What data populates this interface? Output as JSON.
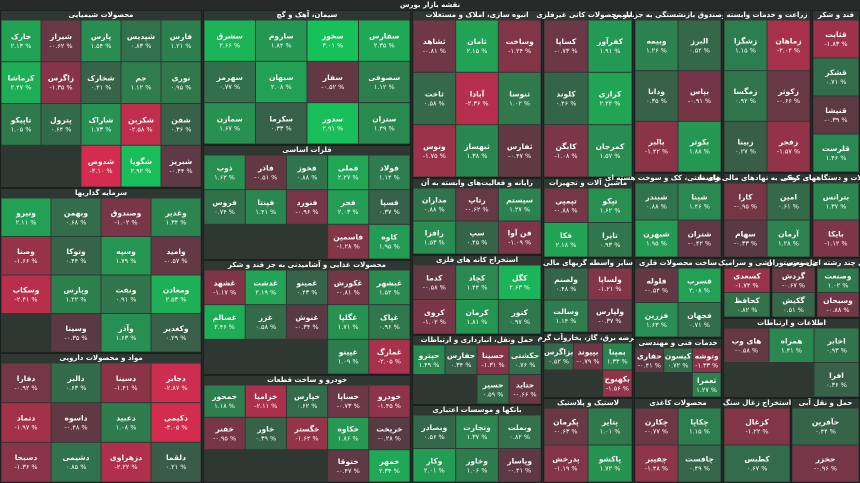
{
  "chart_data": {
    "type": "treemap",
    "title": "نقشه بازار بورس",
    "groups": [
      {
        "name": "محصولات شیمیایی",
        "categories": [
          "فارس",
          "شپدیس",
          "پارس",
          "شیراز",
          "خارک",
          "نوری",
          "جم",
          "شخارک",
          "زاگرس",
          "کرماشا",
          "شفن",
          "شکربن",
          "شاراک",
          "پترول",
          "تاپیکو",
          "شبریز",
          "شگویا",
          "شدوص"
        ],
        "values": [
          1.21,
          0.83,
          1.54,
          -0.62,
          2.13,
          0.95,
          1.12,
          0.41,
          -1.35,
          2.47,
          0.36,
          -2.58,
          1.73,
          0.64,
          1.05,
          -0.44,
          2.92,
          -3.1
        ],
        "value_labels": [
          "۱.۲۱ %",
          "۰.۸۳ %",
          "۱.۵۴ %",
          "-۰.۶۲ %",
          "۲.۱۳ %",
          "۰.۹۵ %",
          "۱.۱۲ %",
          "۰.۴۱ %",
          "-۱.۳۵ %",
          "۲.۴۷ %",
          "۰.۳۶ %",
          "-۲.۵۸ %",
          "۱.۷۳ %",
          "۰.۶۴ %",
          "۱.۰۵ %",
          "-۰.۴۴ %",
          "۲.۹۲ %",
          "-۳.۱۰ %"
        ]
      },
      {
        "name": "سیمان، آهک و گچ",
        "categories": [
          "سفارس",
          "سخوز",
          "ساروم",
          "سشرق",
          "سصوفی",
          "سفار",
          "سبهان",
          "سهرمز",
          "ستران",
          "سدور",
          "سکرما",
          "سمازن"
        ],
        "values": [
          2.35,
          3.01,
          1.84,
          2.66,
          1.12,
          -0.52,
          2.08,
          0.77,
          1.49,
          2.91,
          0.33,
          1.67
        ],
        "value_labels": [
          "۲.۳۵ %",
          "۳.۰۱ %",
          "۱.۸۴ %",
          "۲.۶۶ %",
          "۱.۱۲ %",
          "-۰.۵۲ %",
          "۲.۰۸ %",
          "۰.۷۷ %",
          "۱.۴۹ %",
          "۲.۹۱ %",
          "۰.۳۳ %",
          "۱.۶۷ %"
        ]
      },
      {
        "name": "انبوه سازی، املاک و مستغلات",
        "categories": [
          "وساخت",
          "ثامان",
          "ثشاهد",
          "ثنوسا",
          "آبادا",
          "ثاخت",
          "ثفارس",
          "ثبهساز",
          "وتوس"
        ],
        "values": [
          -1.24,
          2.15,
          -0.81,
          1.02,
          -2.36,
          0.58,
          -0.47,
          1.38,
          -1.75
        ],
        "value_labels": [
          "-۱.۲۴ %",
          "۲.۱۵ %",
          "-۰.۸۱ %",
          "۱.۰۲ %",
          "-۲.۳۶ %",
          "۰.۵۸ %",
          "-۰.۴۷ %",
          "۱.۳۸ %",
          "-۱.۷۵ %"
        ]
      },
      {
        "name": "سایر محصولات کانی غیرفلزی",
        "categories": [
          "کفرآور",
          "کساپا",
          "کرازی",
          "کلوند",
          "کمرجان",
          "کابگن"
        ],
        "values": [
          1.91,
          -0.73,
          2.24,
          0.46,
          1.57,
          -1.08
        ],
        "value_labels": [
          "۱.۹۱ %",
          "-۰.۷۳ %",
          "۲.۲۴ %",
          "۰.۴۶ %",
          "۱.۵۷ %",
          "-۱.۰۸ %"
        ]
      },
      {
        "name": "بیمه وصندوق بازنشستگی به جز تامین",
        "categories": [
          "البرز",
          "وبیمه",
          "بپاس",
          "ودانا",
          "بکوثر",
          "بالبر"
        ],
        "values": [
          0.52,
          1.26,
          -0.91,
          0.35,
          1.88,
          -1.42
        ],
        "value_labels": [
          "۰.۵۲ %",
          "۱.۲۶ %",
          "-۰.۹۱ %",
          "۰.۳۵ %",
          "۱.۸۸ %",
          "-۱.۴۲ %"
        ]
      },
      {
        "name": "زراعت و خدمات وابسته",
        "categories": [
          "زماهان",
          "زشگزا",
          "زکوثر",
          "زمگسا",
          "زفجر",
          "زبینا"
        ],
        "values": [
          -2.04,
          1.15,
          -0.66,
          0.92,
          -1.57,
          0.27
        ],
        "value_labels": [
          "-۲.۰۴ %",
          "۱.۱۵ %",
          "-۰.۶۶ %",
          "۰.۹۲ %",
          "-۱.۵۷ %",
          "۰.۲۷ %"
        ]
      },
      {
        "name": "قند و شکر",
        "categories": [
          "قثابت",
          "قشکر",
          "قنیشا",
          "قلرست"
        ],
        "values": [
          -1.83,
          0.71,
          -0.39,
          1.46
        ],
        "value_labels": [
          "-۱.۸۳ %",
          "۰.۷۱ %",
          "-۰.۳۹ %",
          "۱.۴۶ %"
        ]
      },
      {
        "name": "سرمایه گذاریها",
        "categories": [
          "وغدیر",
          "وصندوق",
          "وبهمن",
          "ونیرو",
          "وامید",
          "وسپه",
          "وتوکا",
          "وصنا",
          "ومعادن",
          "ونفت",
          "وپارس",
          "وسکاب",
          "وکغدیر",
          "وآذر",
          "وسینا"
        ],
        "values": [
          1.34,
          -1.02,
          0.68,
          2.11,
          -0.57,
          1.79,
          0.44,
          -1.66,
          2.53,
          0.91,
          1.22,
          -2.41,
          0.29,
          1.63,
          -0.35
        ],
        "value_labels": [
          "۱.۳۴ %",
          "-۱.۰۲ %",
          "۰.۶۸ %",
          "۲.۱۱ %",
          "-۰.۵۷ %",
          "۱.۷۹ %",
          "۰.۴۴ %",
          "-۱.۶۶ %",
          "۲.۵۳ %",
          "۰.۹۱ %",
          "۱.۲۲ %",
          "-۲.۴۱ %",
          "۰.۲۹ %",
          "۱.۶۳ %",
          "-۰.۳۵ %"
        ]
      },
      {
        "name": "مواد و محصولات دارویی",
        "categories": [
          "دجابر",
          "دسینا",
          "دالبر",
          "دفارا",
          "دکیمی",
          "دعبید",
          "داسوه",
          "دتماد",
          "دلقما",
          "دزهراوی",
          "دشیمی",
          "دسبحا"
        ],
        "values": [
          -2.87,
          -1.41,
          0.63,
          -0.92,
          -3.05,
          1.08,
          -0.48,
          -1.97,
          0.21,
          -2.22,
          0.85,
          -1.36
        ],
        "value_labels": [
          "-۲.۸۷ %",
          "-۱.۴۱ %",
          "۰.۶۳ %",
          "-۰.۹۲ %",
          "-۳.۰۵ %",
          "۱.۰۸ %",
          "-۰.۴۸ %",
          "-۱.۹۷ %",
          "۰.۲۱ %",
          "-۲.۲۲ %",
          "۰.۸۵ %",
          "-۱.۳۶ %"
        ]
      },
      {
        "name": "فلزات اساسی",
        "categories": [
          "فولاد",
          "فملی",
          "فخوز",
          "فاذر",
          "ذوب",
          "فسپا",
          "فجر",
          "فنورد",
          "فپنتا",
          "فروس",
          "کاوه",
          "فاسمین"
        ],
        "values": [
          1.14,
          2.27,
          0.88,
          -0.51,
          1.62,
          0.37,
          2.03,
          -0.96,
          1.41,
          0.74,
          1.95,
          -1.28
        ],
        "value_labels": [
          "۱.۱۴ %",
          "۲.۲۷ %",
          "۰.۸۸ %",
          "-۰.۵۱ %",
          "۱.۶۲ %",
          "۰.۳۷ %",
          "۲.۰۳ %",
          "-۰.۹۶ %",
          "۱.۴۱ %",
          "۰.۷۴ %",
          "۱.۹۵ %",
          "-۱.۲۸ %"
        ]
      },
      {
        "name": "محصولات غذایی و آشامیدنی به جز قند و شکر",
        "categories": [
          "غبشهر",
          "غکورش",
          "غمینو",
          "غدشت",
          "غشهد",
          "غپاک",
          "غگلپا",
          "غنوش",
          "غزر",
          "غسالم",
          "غمارگ",
          "غپینو"
        ],
        "values": [
          1.52,
          -0.81,
          0.43,
          2.19,
          -1.17,
          0.96,
          1.71,
          -0.34,
          0.58,
          2.46,
          -2.05,
          1.09
        ],
        "value_labels": [
          "۱.۵۲ %",
          "-۰.۸۱ %",
          "۰.۴۳ %",
          "۲.۱۹ %",
          "-۱.۱۷ %",
          "۰.۹۶ %",
          "۱.۷۱ %",
          "-۰.۳۴ %",
          "۰.۵۸ %",
          "۲.۴۶ %",
          "-۲.۰۵ %",
          "۱.۰۹ %"
        ]
      },
      {
        "name": "خودرو و ساخت قطعات",
        "categories": [
          "خودرو",
          "خساپا",
          "خپارس",
          "خزامیا",
          "خمحور",
          "خریخت",
          "خکاوه",
          "خگستر",
          "خاور",
          "خفنر",
          "خمهر",
          "ختوقا"
        ],
        "values": [
          -1.45,
          -0.73,
          0.62,
          -2.11,
          1.18,
          -0.28,
          1.86,
          -1.64,
          0.39,
          -0.95,
          2.34,
          -0.47
        ],
        "value_labels": [
          "-۱.۴۵ %",
          "-۰.۷۳ %",
          "۰.۶۲ %",
          "-۲.۱۱ %",
          "۱.۱۸ %",
          "-۰.۲۸ %",
          "۱.۸۶ %",
          "-۱.۶۴ %",
          "۰.۳۹ %",
          "-۰.۹۵ %",
          "۲.۳۴ %",
          "-۰.۴۷ %"
        ]
      },
      {
        "name": "رایانه و فعالیت‌های وابسته به آن",
        "categories": [
          "سیستم",
          "رتاپ",
          "مداران",
          "فن آوا",
          "سپ",
          "رافزا"
        ],
        "values": [
          1.27,
          -0.62,
          0.88,
          -1.09,
          0.45,
          1.53
        ],
        "value_labels": [
          "۱.۲۷ %",
          "-۰.۶۲ %",
          "۰.۸۸ %",
          "-۱.۰۹ %",
          "۰.۴۵ %",
          "۱.۵۳ %"
        ]
      },
      {
        "name": "استخراج کانه های فلزی",
        "categories": [
          "کگل",
          "کچاد",
          "کدما",
          "کنور",
          "کرمان",
          "کروی"
        ],
        "values": [
          2.63,
          1.44,
          -0.58,
          0.97,
          1.81,
          -1.02
        ],
        "value_labels": [
          "۲.۶۳ %",
          "۱.۴۴ %",
          "-۰.۵۸ %",
          "۰.۹۷ %",
          "۱.۸۱ %",
          "-۱.۰۲ %"
        ]
      },
      {
        "name": "حمل ونقل، انبارداری و ارتباطات",
        "categories": [
          "حکشتی",
          "حسینا",
          "حفارس",
          "حپترو",
          "حتاید",
          "حسیر"
        ],
        "values": [
          0.76,
          -1.31,
          0.34,
          1.49,
          -0.66,
          0.59
        ],
        "value_labels": [
          "۰.۷۶ %",
          "-۱.۳۱ %",
          "۰.۳۴ %",
          "۱.۴۹ %",
          "-۰.۶۶ %",
          "۰.۵۹ %"
        ]
      },
      {
        "name": "بانکها و موسسات اعتباری",
        "categories": [
          "وبملت",
          "وتجارت",
          "وبصادر",
          "وپاسار",
          "وخاور",
          "وکار"
        ],
        "values": [
          0.82,
          1.37,
          0.56,
          -0.41,
          1.06,
          2.01
        ],
        "value_labels": [
          "۰.۸۲ %",
          "۱.۳۷ %",
          "۰.۵۶ %",
          "-۰.۴۱ %",
          "۱.۰۶ %",
          "۲.۰۱ %"
        ]
      },
      {
        "name": "ماشین آلات و تجهیزات",
        "categories": [
          "تپکو",
          "تپمپی",
          "تایرا",
          "فکا"
        ],
        "values": [
          1.62,
          -0.88,
          0.93,
          2.18
        ],
        "value_labels": [
          "۱.۶۲ %",
          "-۰.۸۸ %",
          "۰.۹۳ %",
          "۲.۱۸ %"
        ]
      },
      {
        "name": "سایر واسطه گریهای مالی",
        "categories": [
          "ولساپا",
          "ولصنم",
          "ولپارس",
          "وسالت"
        ],
        "values": [
          -1.21,
          0.48,
          -0.37,
          1.14
        ],
        "value_labels": [
          "-۱.۲۱ %",
          "۰.۴۸ %",
          "-۰.۳۷ %",
          "۱.۱۴ %"
        ]
      },
      {
        "name": "عرضه برق، گاز، بخاروآب گرم",
        "categories": [
          "بمپنا",
          "بپیوند",
          "بزاگرس",
          "بکهنوج"
        ],
        "values": [
          1.33,
          -0.79,
          0.52,
          -1.56
        ],
        "value_labels": [
          "۱.۳۳ %",
          "-۰.۷۹ %",
          "۰.۵۲ %",
          "-۱.۵۶ %"
        ]
      },
      {
        "name": "لاستیک و پلاستیک",
        "categories": [
          "پتایر",
          "پکرمان",
          "پاکشو",
          "پدرخش"
        ],
        "values": [
          1.01,
          -0.63,
          1.72,
          -1.19
        ],
        "value_labels": [
          "۱.۰۱ %",
          "-۰.۶۳ %",
          "۱.۷۲ %",
          "-۱.۱۹ %"
        ]
      },
      {
        "name": "فرآورده های نفتی، کک و سوخت هسته ای",
        "categories": [
          "شپنا",
          "شبندر",
          "شتران",
          "شبهرن"
        ],
        "values": [
          1.46,
          0.88,
          -0.42,
          1.95
        ],
        "value_labels": [
          "۱.۴۶ %",
          "۰.۸۸ %",
          "-۰.۴۲ %",
          "۱.۹۵ %"
        ]
      },
      {
        "name": "فعالیتهای کمکی به نهادهای مالی واسط",
        "categories": [
          "امین",
          "کارا",
          "آرمان",
          "سهام"
        ],
        "values": [
          0.61,
          -0.95,
          1.28,
          -0.33
        ],
        "value_labels": [
          "۰.۶۱ %",
          "-۰.۹۵ %",
          "۱.۲۸ %",
          "-۰.۳۳ %"
        ]
      },
      {
        "name": "ماشین آلات و دستگاههای برقی",
        "categories": [
          "بترانس",
          "بایکا"
        ],
        "values": [
          1.37,
          -1.12
        ],
        "value_labels": [
          "۱.۳۷ %",
          "-۱.۱۲ %"
        ]
      },
      {
        "name": "ساخت محصولات فلزی",
        "categories": [
          "فسرب",
          "فلوله",
          "فجهان",
          "فزرین"
        ],
        "values": [
          2.08,
          -0.54,
          0.71,
          1.63
        ],
        "value_labels": [
          "۲.۰۸ %",
          "-۰.۵۴ %",
          "۰.۷۱ %",
          "۱.۶۳ %"
        ]
      },
      {
        "name": "کاشی و سرامیک",
        "categories": [
          "کسعدی",
          "کحافظ"
        ],
        "values": [
          -1.74,
          0.82
        ],
        "value_labels": [
          "-۱.۷۴ %",
          "۰.۸۲ %"
        ]
      },
      {
        "name": "هتل و رستوران",
        "categories": [
          "گردش",
          "گکیش"
        ],
        "values": [
          -0.67,
          0.51
        ],
        "value_labels": [
          "-۰.۶۷ %",
          "۰.۵۱ %"
        ]
      },
      {
        "name": "شرکتهای چند رشته ای صنعتی",
        "categories": [
          "وصنعت",
          "وسبحان"
        ],
        "values": [
          1.02,
          -0.88
        ],
        "value_labels": [
          "۱.۰۲ %",
          "-۰.۸۸ %"
        ]
      },
      {
        "name": "خدمات فنی و مهندسی",
        "categories": [
          "وتوشه",
          "کیسون",
          "حفاری",
          "ثعمرا"
        ],
        "values": [
          -1.33,
          0.72,
          -0.41,
          1.27
        ],
        "value_labels": [
          "-۱.۳۳ %",
          "۰.۷۲ %",
          "-۰.۴۱ %",
          "۱.۲۷ %"
        ]
      },
      {
        "name": "محصولات کاغذی",
        "categories": [
          "چکاپا",
          "چکارن",
          "چافست",
          "چفیبر"
        ],
        "values": [
          1.15,
          -0.77,
          0.49,
          -1.48
        ],
        "value_labels": [
          "۱.۱۵ %",
          "-۰.۷۷ %",
          "۰.۴۹ %",
          "-۱.۴۸ %"
        ]
      },
      {
        "name": "اطلاعات و ارتباطات",
        "categories": [
          "اخابر",
          "همراه",
          "های وب",
          "افرا"
        ],
        "values": [
          0.93,
          1.41,
          -0.58,
          0.36
        ],
        "value_labels": [
          "۰.۹۳ %",
          "۱.۴۱ %",
          "-۰.۵۸ %",
          "۰.۳۶ %"
        ]
      },
      {
        "name": "استخراج زغال سنگ",
        "categories": [
          "کزغال",
          "کطبس"
        ],
        "values": [
          -1.22,
          0.67
        ],
        "value_labels": [
          "-۱.۲۲ %",
          "۰.۶۷ %"
        ]
      },
      {
        "name": "حمل و نقل آبی",
        "categories": [
          "حآفرین",
          "حخزر"
        ],
        "values": [
          0.44,
          -0.96
        ],
        "value_labels": [
          "۰.۴۴ %",
          "-۰.۹۶ %"
        ]
      }
    ]
  }
}
